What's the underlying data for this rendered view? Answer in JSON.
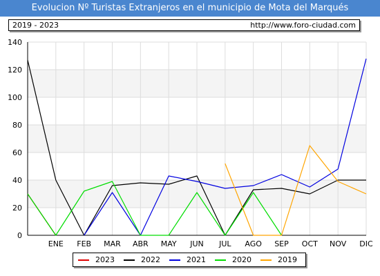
{
  "header": {
    "title": "Evolucion Nº Turistas Extranjeros en el municipio de Mota del Marqués",
    "range": "2019 - 2023",
    "url": "http://www.foro-ciudad.com"
  },
  "chart_data": {
    "type": "line",
    "title": "Evolucion Nº Turistas Extranjeros en el municipio de Mota del Marqués",
    "xlabel": "",
    "ylabel": "",
    "x_ticks": [
      "ENE",
      "FEB",
      "MAR",
      "ABR",
      "MAY",
      "JUN",
      "JUL",
      "AGO",
      "SEP",
      "OCT",
      "NOV",
      "DIC"
    ],
    "y_ticks": [
      0,
      20,
      40,
      60,
      80,
      100,
      120,
      140
    ],
    "ylim": [
      0,
      140
    ],
    "grid": true,
    "legend_position": "bottom",
    "series": [
      {
        "name": "2023",
        "color": "#e00000",
        "points": [
          [
            0,
            30
          ],
          [
            1,
            0
          ]
        ]
      },
      {
        "name": "2022",
        "color": "#000000",
        "points": [
          [
            0,
            127
          ],
          [
            1,
            40
          ],
          [
            2,
            0
          ],
          [
            3,
            36
          ],
          [
            4,
            38
          ],
          [
            5,
            37
          ],
          [
            6,
            43
          ],
          [
            7,
            0
          ],
          [
            8,
            33
          ],
          [
            9,
            34
          ],
          [
            10,
            30
          ],
          [
            11,
            40
          ],
          [
            12,
            40
          ]
        ]
      },
      {
        "name": "2021",
        "color": "#0000e0",
        "points": [
          [
            2,
            0
          ],
          [
            3,
            31
          ],
          [
            4,
            0
          ],
          [
            5,
            43
          ],
          [
            6,
            39
          ],
          [
            7,
            34
          ],
          [
            8,
            36
          ],
          [
            9,
            44
          ],
          [
            10,
            35
          ],
          [
            11,
            48
          ],
          [
            12,
            128
          ]
        ]
      },
      {
        "name": "2020",
        "color": "#00dd00",
        "points": [
          [
            0,
            30
          ],
          [
            1,
            0
          ],
          [
            2,
            32
          ],
          [
            3,
            39
          ],
          [
            4,
            0
          ],
          [
            5,
            0
          ],
          [
            6,
            31
          ],
          [
            7,
            0
          ],
          [
            8,
            31
          ],
          [
            9,
            0
          ]
        ]
      },
      {
        "name": "2019",
        "color": "#ffa500",
        "points": [
          [
            7,
            52
          ],
          [
            8,
            0
          ],
          [
            9,
            0
          ],
          [
            10,
            65
          ],
          [
            11,
            39
          ],
          [
            12,
            30
          ]
        ]
      }
    ]
  }
}
